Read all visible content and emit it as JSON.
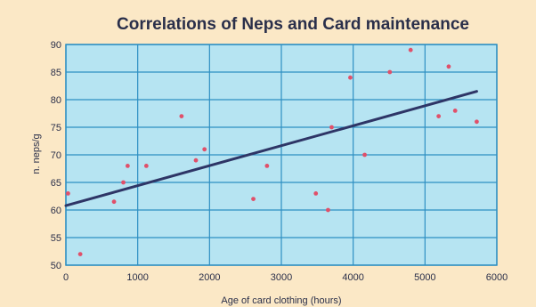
{
  "chart_data": {
    "type": "scatter",
    "title": "Correlations of Neps and Card maintenance",
    "xlabel": "Age of card clothing (hours)",
    "ylabel": "n. neps/g",
    "xlim": [
      0,
      6000
    ],
    "ylim": [
      50,
      90
    ],
    "xticks": [
      0,
      1000,
      2000,
      3000,
      4000,
      5000,
      6000
    ],
    "yticks": [
      50,
      55,
      60,
      65,
      70,
      75,
      80,
      85,
      90
    ],
    "grid": true,
    "points": [
      {
        "x": 30,
        "y": 63
      },
      {
        "x": 200,
        "y": 52
      },
      {
        "x": 670,
        "y": 61.5
      },
      {
        "x": 800,
        "y": 65
      },
      {
        "x": 860,
        "y": 68
      },
      {
        "x": 1120,
        "y": 68
      },
      {
        "x": 1610,
        "y": 77
      },
      {
        "x": 1810,
        "y": 69
      },
      {
        "x": 1930,
        "y": 71
      },
      {
        "x": 2610,
        "y": 62
      },
      {
        "x": 2800,
        "y": 68
      },
      {
        "x": 3480,
        "y": 63
      },
      {
        "x": 3650,
        "y": 60
      },
      {
        "x": 3700,
        "y": 75
      },
      {
        "x": 3960,
        "y": 84
      },
      {
        "x": 4160,
        "y": 70
      },
      {
        "x": 4510,
        "y": 85
      },
      {
        "x": 4800,
        "y": 89
      },
      {
        "x": 5190,
        "y": 77
      },
      {
        "x": 5330,
        "y": 86
      },
      {
        "x": 5420,
        "y": 78
      },
      {
        "x": 5720,
        "y": 76
      }
    ],
    "trendline": {
      "x": [
        0,
        5720
      ],
      "y": [
        60.8,
        81.5
      ]
    },
    "colors": {
      "plot_background": "#b6e4f2",
      "grid": "#2e8fc2",
      "points": "#e0506a",
      "trendline": "#2e3566"
    }
  }
}
